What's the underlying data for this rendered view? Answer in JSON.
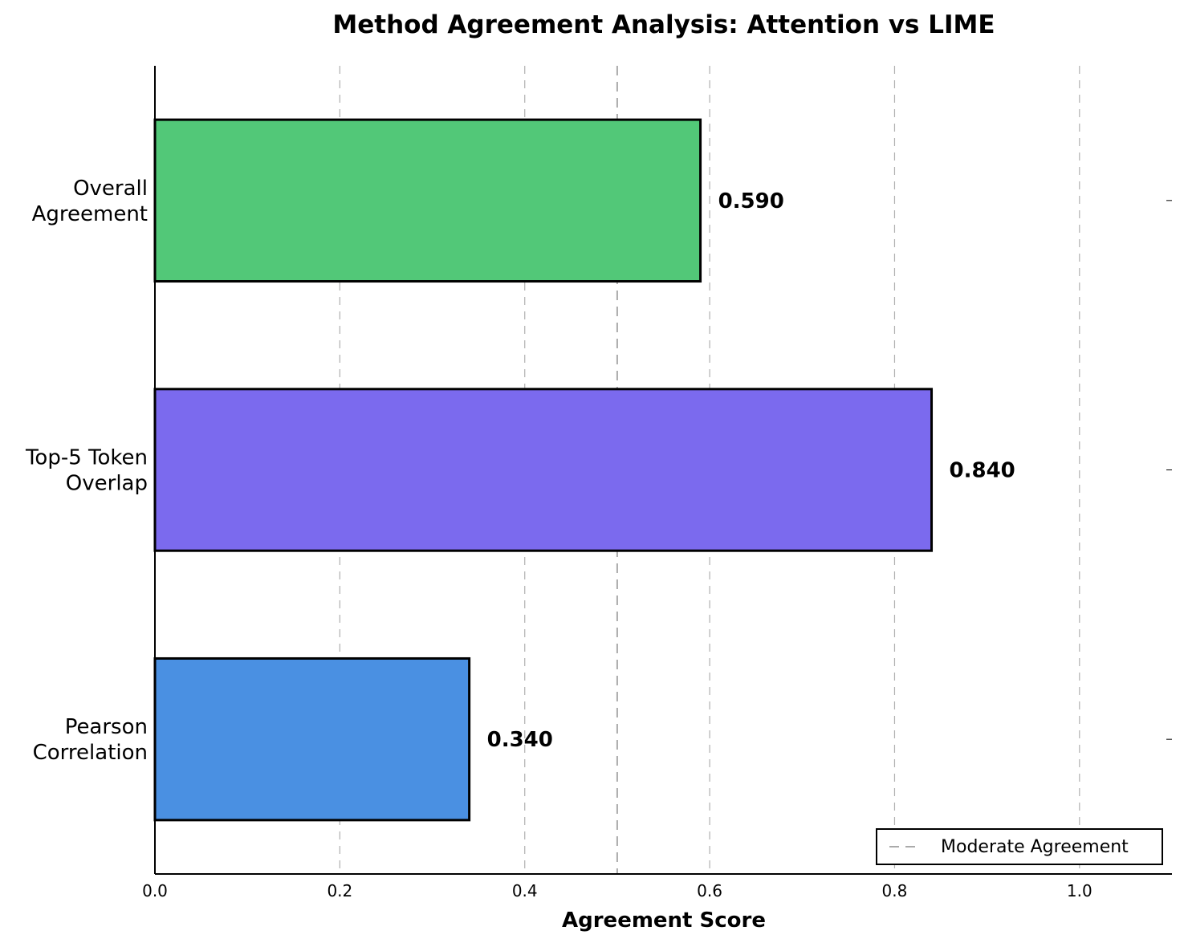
{
  "chart_data": {
    "type": "bar",
    "orientation": "horizontal",
    "title": "Method Agreement Analysis: Attention vs LIME",
    "xlabel": "Agreement Score",
    "ylabel": "",
    "categories": [
      "Overall\nAgreement",
      "Top-5 Token\nOverlap",
      "Pearson\nCorrelation"
    ],
    "values": [
      0.59,
      0.84,
      0.34
    ],
    "value_labels": [
      "0.590",
      "0.840",
      "0.340"
    ],
    "colors": [
      "#52c878",
      "#7b6aee",
      "#4a90e2"
    ],
    "xlim": [
      0,
      1.1
    ],
    "xticks": [
      0.0,
      0.2,
      0.4,
      0.6,
      0.8,
      1.0
    ],
    "xtick_labels": [
      "0.0",
      "0.2",
      "0.4",
      "0.6",
      "0.8",
      "1.0"
    ],
    "grid": "x-dashed",
    "reference_line": {
      "x": 0.5,
      "label": "Moderate Agreement",
      "style": "dashed",
      "color": "#aaaaaa"
    },
    "legend": {
      "position": "bottom-right",
      "entries": [
        "Moderate Agreement"
      ]
    }
  }
}
